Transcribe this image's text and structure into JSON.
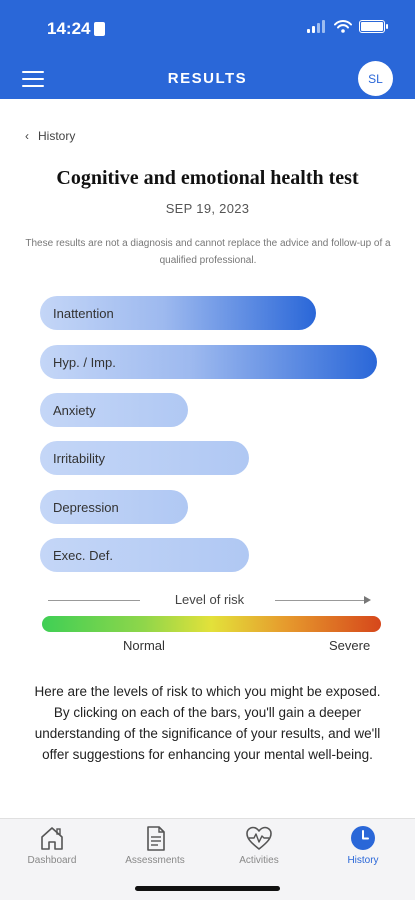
{
  "status": {
    "time": "14:24"
  },
  "header": {
    "title": "RESULTS",
    "avatar_initials": "SL"
  },
  "breadcrumb": {
    "back_label": "History"
  },
  "test": {
    "title": "Cognitive and emotional health test",
    "date": "SEP 19, 2023",
    "disclaimer": "These results are not a diagnosis and cannot replace the advice and follow-up of a qualified professional."
  },
  "bars": [
    {
      "label": "Inattention",
      "level": 0.82
    },
    {
      "label": "Hyp. / Imp.",
      "level": 1.0
    },
    {
      "label": "Anxiety",
      "level": 0.44
    },
    {
      "label": "Irritability",
      "level": 0.62
    },
    {
      "label": "Depression",
      "level": 0.44
    },
    {
      "label": "Exec. Def.",
      "level": 0.62
    }
  ],
  "scale": {
    "title": "Level of risk",
    "min_label": "Normal",
    "max_label": "Severe"
  },
  "explanation": "Here are the levels of risk to which you might be exposed. By clicking on each of the bars, you'll gain a deeper understanding of the significance of your results, and we'll offer suggestions for enhancing your mental well-being.",
  "tabs": [
    {
      "label": "Dashboard",
      "icon": "home-icon"
    },
    {
      "label": "Assessments",
      "icon": "document-icon"
    },
    {
      "label": "Activities",
      "icon": "heart-pulse-icon"
    },
    {
      "label": "History",
      "icon": "clock-icon",
      "active": true
    }
  ],
  "colors": {
    "primary": "#2a67d8",
    "bar_light": "#c4d6f7",
    "bar_dark": "#2a67d8"
  }
}
